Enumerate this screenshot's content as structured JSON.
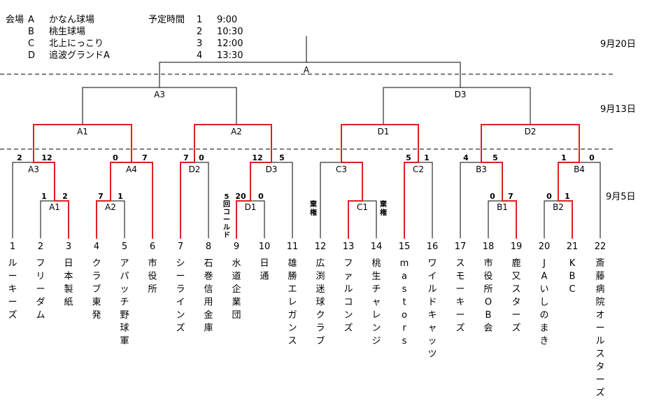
{
  "venue_header": "会場",
  "venues": [
    {
      "code": "A",
      "name": "かなん球場"
    },
    {
      "code": "B",
      "name": "桃生球場"
    },
    {
      "code": "C",
      "name": "北上にっこり"
    },
    {
      "code": "D",
      "name": "追波グランドA"
    }
  ],
  "schedule_header": "予定時間",
  "times": [
    {
      "no": "1",
      "time": "9:00"
    },
    {
      "no": "2",
      "time": "10:30"
    },
    {
      "no": "3",
      "time": "12:00"
    },
    {
      "no": "4",
      "time": "13:30"
    }
  ],
  "dates": {
    "final": "9月20日",
    "semifinal": "9月13日",
    "early": "9月5日"
  },
  "teams": [
    {
      "no": "1",
      "name": "ルーキーズ"
    },
    {
      "no": "2",
      "name": "フリーダム"
    },
    {
      "no": "3",
      "name": "日本製紙"
    },
    {
      "no": "4",
      "name": "クラブ東発"
    },
    {
      "no": "5",
      "name": "アパッチ野球軍"
    },
    {
      "no": "6",
      "name": "市役所"
    },
    {
      "no": "7",
      "name": "シーラインズ"
    },
    {
      "no": "8",
      "name": "石巻信用金庫"
    },
    {
      "no": "9",
      "name": "水道企業団"
    },
    {
      "no": "10",
      "name": "日通"
    },
    {
      "no": "11",
      "name": "雄勝エレガンス"
    },
    {
      "no": "12",
      "name": "広渕迷球クラブ"
    },
    {
      "no": "13",
      "name": "ファルコンズ"
    },
    {
      "no": "14",
      "name": "桃生チャレンジ"
    },
    {
      "no": "15",
      "name": "mastors"
    },
    {
      "no": "16",
      "name": "ワイルドキャッツ"
    },
    {
      "no": "17",
      "name": "スモーキーズ"
    },
    {
      "no": "18",
      "name": "市役所OB会"
    },
    {
      "no": "19",
      "name": "鹿又スターズ"
    },
    {
      "no": "20",
      "name": "JAいしのまき"
    },
    {
      "no": "21",
      "name": "KBC"
    },
    {
      "no": "22",
      "name": "斎藤病院オールスターズ"
    }
  ],
  "matches": {
    "A1": {
      "label": "A1",
      "score_left": "1",
      "score_right": "2"
    },
    "A2": {
      "label": "A2",
      "score_left": "7",
      "score_right": "1"
    },
    "D1": {
      "label": "D1",
      "score_left": "20",
      "score_right": "0"
    },
    "C1": {
      "label": "C1"
    },
    "B1": {
      "label": "B1",
      "score_left": "0",
      "score_right": "7"
    },
    "B2": {
      "label": "B2",
      "score_left": "0",
      "score_right": "1"
    },
    "A3": {
      "label": "A3",
      "score_left": "2",
      "score_right": "12"
    },
    "A4": {
      "label": "A4",
      "score_left": "0",
      "score_right": "7"
    },
    "D2": {
      "label": "D2",
      "score_left": "7",
      "score_right": "0"
    },
    "D3": {
      "label": "D3",
      "score_left": "12",
      "score_right": "5"
    },
    "C3": {
      "label": "C3"
    },
    "C2": {
      "label": "C2",
      "score_left": "5",
      "score_right": "1"
    },
    "B3": {
      "label": "B3",
      "score_left": "4",
      "score_right": "5"
    },
    "B4": {
      "label": "B4",
      "score_left": "1",
      "score_right": "0"
    },
    "QA1": {
      "label": "A1"
    },
    "QA2": {
      "label": "A2"
    },
    "QD1": {
      "label": "D1"
    },
    "QD2": {
      "label": "D2"
    },
    "SA3": {
      "label": "A3"
    },
    "SD3": {
      "label": "D3"
    },
    "F": {
      "label": "A"
    }
  },
  "notes": {
    "called_game": "5回コールド",
    "forfeit_12": "棄権",
    "forfeit_14": "棄権"
  },
  "colors": {
    "line": "#000000",
    "winner": "#e02020",
    "divider": "#000000"
  }
}
